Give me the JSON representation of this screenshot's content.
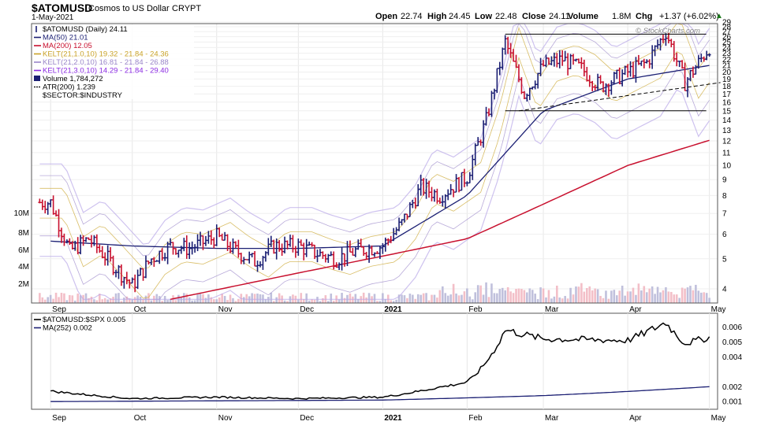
{
  "header": {
    "symbol": "$ATOMUSD",
    "name": "Cosmos to US Dollar",
    "exchange": "CRYPT",
    "date": "1-May-2021",
    "open_label": "Open",
    "open": "22.74",
    "high_label": "High",
    "high": "24.45",
    "low_label": "Low",
    "low": "22.48",
    "close_label": "Close",
    "close": "24.11",
    "volume_label": "Volume",
    "volume": "1.8M",
    "chg_label": "Chg",
    "chg": "+1.37 (+6.02%)",
    "chg_arrow": "▲",
    "watermark": "© StockCharts.com"
  },
  "colors": {
    "up": "#1b1f73",
    "down": "#c8102e",
    "ma50": "#1b1f73",
    "ma200": "#c8102e",
    "kelt1": "#c9a227",
    "kelt2": "#9a86c9",
    "kelt3": "#b9a8e8",
    "volume_up": "#b9b9d8",
    "volume_down": "#f2b8c2",
    "ratio": "#000000"
  },
  "chart_data": [
    {
      "type": "candlestick",
      "title": "$ATOMUSD (Daily) 24.11",
      "y_scale": "log",
      "ylim": [
        3.6,
        29
      ],
      "y_ticks": [
        4,
        5,
        6,
        7,
        8,
        9,
        10,
        11,
        12,
        13,
        14,
        15,
        16,
        17,
        18,
        19,
        20,
        21,
        22,
        23,
        24,
        25,
        26,
        27,
        28,
        29
      ],
      "volume_ticks": [
        "2M",
        "4M",
        "6M",
        "8M",
        "10M"
      ],
      "x_ticks": [
        "Sep",
        "Oct",
        "Nov",
        "Dec",
        "2021",
        "Feb",
        "Mar",
        "Apr",
        "May"
      ],
      "legend": [
        {
          "label": "$ATOMUSD (Daily) 24.11",
          "icon": "candle"
        },
        {
          "label": "MA(50) 21.01",
          "icon": "line",
          "color": "#1b1f73"
        },
        {
          "label": "MA(200) 12.05",
          "icon": "line",
          "color": "#c8102e"
        },
        {
          "label": "KELT(21,1.0,10) 19.32 - 21.84 - 24.36",
          "icon": "line",
          "color": "#c9a227"
        },
        {
          "label": "KELT(21,2.0,10) 16.81 - 21.84 - 26.88",
          "icon": "line",
          "color": "#9a86c9"
        },
        {
          "label": "KELT(21,3.0,10) 14.29 - 21.84 - 29.40",
          "icon": "line",
          "color": "#8a2be2"
        },
        {
          "label": "Volume 1,784,272",
          "icon": "bars"
        },
        {
          "label": "ATR(200) 1.239",
          "icon": "dash"
        },
        {
          "label": "$SECTOR:$INDUSTRY",
          "icon": "none"
        }
      ],
      "close_series": [
        {
          "date": "2020-09-01",
          "close": 7.6
        },
        {
          "date": "2020-09-08",
          "close": 5.3
        },
        {
          "date": "2020-09-15",
          "close": 5.8
        },
        {
          "date": "2020-09-22",
          "close": 5.0
        },
        {
          "date": "2020-10-01",
          "close": 4.1
        },
        {
          "date": "2020-10-08",
          "close": 5.0
        },
        {
          "date": "2020-10-15",
          "close": 5.5
        },
        {
          "date": "2020-10-22",
          "close": 5.4
        },
        {
          "date": "2020-11-01",
          "close": 5.9
        },
        {
          "date": "2020-11-08",
          "close": 5.3
        },
        {
          "date": "2020-11-15",
          "close": 4.9
        },
        {
          "date": "2020-11-22",
          "close": 5.5
        },
        {
          "date": "2020-12-01",
          "close": 5.5
        },
        {
          "date": "2020-12-08",
          "close": 5.2
        },
        {
          "date": "2020-12-15",
          "close": 5.0
        },
        {
          "date": "2020-12-22",
          "close": 5.3
        },
        {
          "date": "2021-01-01",
          "close": 5.5
        },
        {
          "date": "2021-01-08",
          "close": 6.5
        },
        {
          "date": "2021-01-15",
          "close": 8.5
        },
        {
          "date": "2021-01-22",
          "close": 8.0
        },
        {
          "date": "2021-02-01",
          "close": 9.2
        },
        {
          "date": "2021-02-08",
          "close": 14.0
        },
        {
          "date": "2021-02-15",
          "close": 25.0
        },
        {
          "date": "2021-02-22",
          "close": 17.0
        },
        {
          "date": "2021-03-01",
          "close": 21.0
        },
        {
          "date": "2021-03-08",
          "close": 22.0
        },
        {
          "date": "2021-03-15",
          "close": 20.5
        },
        {
          "date": "2021-03-22",
          "close": 18.0
        },
        {
          "date": "2021-04-01",
          "close": 20.0
        },
        {
          "date": "2021-04-08",
          "close": 21.5
        },
        {
          "date": "2021-04-15",
          "close": 27.0
        },
        {
          "date": "2021-04-22",
          "close": 18.5
        },
        {
          "date": "2021-05-01",
          "close": 24.11
        }
      ],
      "ma50_series": [
        {
          "date": "2020-09-01",
          "value": 5.7
        },
        {
          "date": "2020-10-01",
          "value": 5.5
        },
        {
          "date": "2020-11-01",
          "value": 5.4
        },
        {
          "date": "2020-12-01",
          "value": 5.4
        },
        {
          "date": "2021-01-01",
          "value": 5.5
        },
        {
          "date": "2021-02-01",
          "value": 8.0
        },
        {
          "date": "2021-03-01",
          "value": 15.0
        },
        {
          "date": "2021-04-01",
          "value": 19.0
        },
        {
          "date": "2021-05-01",
          "value": 21.01
        }
      ],
      "ma200_series": [
        {
          "date": "2020-10-15",
          "value": 3.7
        },
        {
          "date": "2020-12-01",
          "value": 4.5
        },
        {
          "date": "2021-01-01",
          "value": 5.1
        },
        {
          "date": "2021-02-01",
          "value": 5.8
        },
        {
          "date": "2021-03-01",
          "value": 7.5
        },
        {
          "date": "2021-04-01",
          "value": 10.0
        },
        {
          "date": "2021-05-01",
          "value": 12.05
        }
      ],
      "annotations": [
        {
          "type": "box",
          "from": "2021-02-15",
          "to": "2021-05-01",
          "upper": 26.5,
          "lower": 15.0
        },
        {
          "type": "trendline",
          "style": "dashed",
          "from": [
            "2021-02-20",
            15.0
          ],
          "to": [
            "2021-05-01",
            18.5
          ]
        }
      ]
    },
    {
      "type": "line",
      "title": "$ATOMUSD:$SPX 0.005",
      "legend": [
        {
          "label": "$ATOMUSD:$SPX 0.005",
          "color": "#000000"
        },
        {
          "label": "MA(252) 0.002",
          "color": "#1b1f73"
        }
      ],
      "ylim": [
        0.0008,
        0.0065
      ],
      "y_ticks": [
        "0.001",
        "0.002",
        "0.004",
        "0.005",
        "0.006"
      ],
      "x_ticks": [
        "Sep",
        "Oct",
        "Nov",
        "Dec",
        "2021",
        "Feb",
        "Mar",
        "Apr",
        "May"
      ],
      "series": [
        {
          "name": "$ATOMUSD:$SPX",
          "values": [
            {
              "date": "2020-09-01",
              "value": 0.0017
            },
            {
              "date": "2020-10-01",
              "value": 0.0012
            },
            {
              "date": "2020-11-01",
              "value": 0.0013
            },
            {
              "date": "2020-12-01",
              "value": 0.0012
            },
            {
              "date": "2021-01-01",
              "value": 0.0013
            },
            {
              "date": "2021-01-20",
              "value": 0.0019
            },
            {
              "date": "2021-02-01",
              "value": 0.0023
            },
            {
              "date": "2021-02-15",
              "value": 0.0058
            },
            {
              "date": "2021-03-01",
              "value": 0.0052
            },
            {
              "date": "2021-04-01",
              "value": 0.0051
            },
            {
              "date": "2021-04-15",
              "value": 0.0063
            },
            {
              "date": "2021-04-22",
              "value": 0.0049
            },
            {
              "date": "2021-05-01",
              "value": 0.0053
            }
          ]
        },
        {
          "name": "MA(252)",
          "values": [
            {
              "date": "2020-09-01",
              "value": 0.001
            },
            {
              "date": "2021-01-01",
              "value": 0.0011
            },
            {
              "date": "2021-03-01",
              "value": 0.0014
            },
            {
              "date": "2021-05-01",
              "value": 0.002
            }
          ]
        }
      ]
    }
  ]
}
